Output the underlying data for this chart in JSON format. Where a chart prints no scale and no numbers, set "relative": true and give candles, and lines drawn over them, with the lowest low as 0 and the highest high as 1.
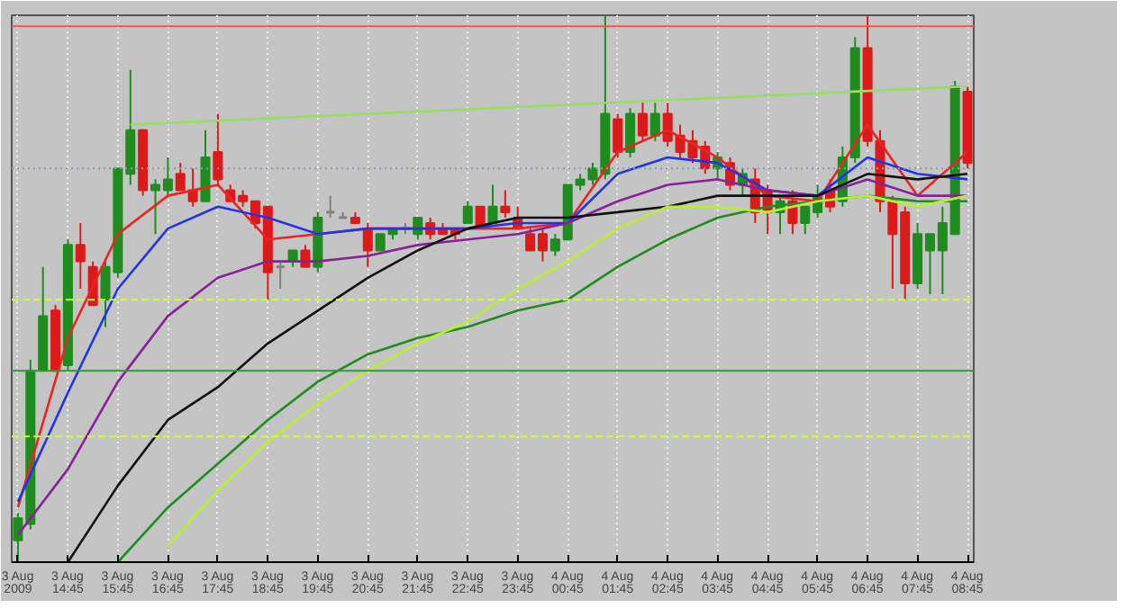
{
  "chart_data": {
    "type": "candlestick",
    "relative": true,
    "grid": "x",
    "categories": [
      "3 Aug 2009",
      null,
      null,
      null,
      "3 Aug 14:45",
      null,
      null,
      null,
      "3 Aug 15:45",
      null,
      null,
      null,
      "3 Aug 16:45",
      null,
      null,
      null,
      "3 Aug 17:45",
      null,
      null,
      null,
      "3 Aug 18:45",
      null,
      null,
      null,
      "3 Aug 19:45",
      null,
      null,
      null,
      "3 Aug 20:45",
      null,
      null,
      null,
      "3 Aug 21:45",
      null,
      null,
      null,
      "3 Aug 22:45",
      null,
      null,
      null,
      "3 Aug 23:45",
      null,
      null,
      null,
      "4 Aug 00:45",
      null,
      null,
      null,
      "4 Aug 01:45",
      null,
      null,
      null,
      "4 Aug 02:45",
      null,
      null,
      null,
      "4 Aug 03:45",
      null,
      null,
      null,
      "4 Aug 04:45",
      null,
      null,
      null,
      "4 Aug 05:45",
      null,
      null,
      null,
      "4 Aug 06:45",
      null,
      null,
      null,
      "4 Aug 07:45",
      null,
      null,
      null,
      "4 Aug 08:45"
    ],
    "colors": [
      "#1e8c1e",
      "#1e8c1e",
      "#1e8c1e",
      "#dd1a1a",
      "#1e8c1e",
      "#dd1a1a",
      "#dd1a1a",
      "#1e8c1e",
      "#1e8c1e",
      "#1e8c1e",
      "#dd1a1a",
      "#1e8c1e",
      "#1e8c1e",
      "#dd1a1a",
      "#dd1a1a",
      "#1e8c1e",
      "#dd1a1a",
      "#dd1a1a",
      "#dd1a1a",
      "#dd1a1a",
      "#dd1a1a",
      "#808080",
      "#1e8c1e",
      "#dd1a1a",
      "#1e8c1e",
      "#808080",
      "#808080",
      "#dd1a1a",
      "#dd1a1a",
      "#1e8c1e",
      "#1e8c1e",
      "#808080",
      "#1e8c1e",
      "#dd1a1a",
      "#dd1a1a",
      "#dd1a1a",
      "#1e8c1e",
      "#dd1a1a",
      "#1e8c1e",
      "#dd1a1a",
      "#dd1a1a",
      "#dd1a1a",
      "#dd1a1a",
      "#1e8c1e",
      "#1e8c1e",
      "#1e8c1e",
      "#1e8c1e",
      "#1e8c1e",
      "#dd1a1a",
      "#1e8c1e",
      "#dd1a1a",
      "#1e8c1e",
      "#dd1a1a",
      "#dd1a1a",
      "#dd1a1a",
      "#dd1a1a",
      "#1e8c1e",
      "#dd1a1a",
      "#1e8c1e",
      "#dd1a1a",
      "#dd1a1a",
      "#1e8c1e",
      "#dd1a1a",
      "#1e8c1e",
      "#1e8c1e",
      "#dd1a1a",
      "#1e8c1e",
      "#1e8c1e",
      "#dd1a1a",
      "#dd1a1a",
      "#dd1a1a",
      "#dd1a1a",
      "#1e8c1e",
      "#1e8c1e",
      "#1e8c1e",
      "#1e8c1e",
      "#dd1a1a"
    ],
    "ohlc": [
      [
        0.04,
        0.09,
        0,
        0.08
      ],
      [
        0.07,
        0.37,
        0.06,
        0.35
      ],
      [
        0.35,
        0.54,
        0.35,
        0.45
      ],
      [
        0.46,
        0.47,
        0.35,
        0.35
      ],
      [
        0.36,
        0.59,
        0.35,
        0.58
      ],
      [
        0.58,
        0.62,
        0.5,
        0.55
      ],
      [
        0.54,
        0.55,
        0.47,
        0.47
      ],
      [
        0.48,
        0.55,
        0.43,
        0.54
      ],
      [
        0.53,
        0.72,
        0.52,
        0.72
      ],
      [
        0.71,
        0.9,
        0.69,
        0.79
      ],
      [
        0.79,
        0.79,
        0.67,
        0.68
      ],
      [
        0.68,
        0.7,
        0.6,
        0.69
      ],
      [
        0.68,
        0.74,
        0.67,
        0.7
      ],
      [
        0.71,
        0.73,
        0.68,
        0.68
      ],
      [
        0.68,
        0.72,
        0.65,
        0.66
      ],
      [
        0.66,
        0.79,
        0.66,
        0.74
      ],
      [
        0.75,
        0.82,
        0.69,
        0.7
      ],
      [
        0.68,
        0.69,
        0.66,
        0.66
      ],
      [
        0.67,
        0.68,
        0.65,
        0.66
      ],
      [
        0.66,
        0.66,
        0.61,
        0.62
      ],
      [
        0.65,
        0.65,
        0.48,
        0.53
      ],
      [
        0.54,
        0.55,
        0.5,
        0.54
      ],
      [
        0.55,
        0.57,
        0.54,
        0.57
      ],
      [
        0.57,
        0.58,
        0.54,
        0.54
      ],
      [
        0.54,
        0.64,
        0.53,
        0.63
      ],
      [
        0.64,
        0.67,
        0.63,
        0.64
      ],
      [
        0.63,
        0.64,
        0.63,
        0.63
      ],
      [
        0.63,
        0.64,
        0.62,
        0.62
      ],
      [
        0.61,
        0.62,
        0.54,
        0.57
      ],
      [
        0.57,
        0.6,
        0.57,
        0.6
      ],
      [
        0.6,
        0.61,
        0.59,
        0.61
      ],
      [
        0.61,
        0.62,
        0.6,
        0.61
      ],
      [
        0.6,
        0.63,
        0.59,
        0.63
      ],
      [
        0.62,
        0.63,
        0.59,
        0.6
      ],
      [
        0.61,
        0.62,
        0.6,
        0.6
      ],
      [
        0.61,
        0.61,
        0.59,
        0.6
      ],
      [
        0.62,
        0.66,
        0.62,
        0.65
      ],
      [
        0.65,
        0.65,
        0.61,
        0.61
      ],
      [
        0.62,
        0.69,
        0.62,
        0.65
      ],
      [
        0.65,
        0.68,
        0.63,
        0.64
      ],
      [
        0.63,
        0.65,
        0.61,
        0.61
      ],
      [
        0.6,
        0.61,
        0.57,
        0.57
      ],
      [
        0.6,
        0.61,
        0.55,
        0.57
      ],
      [
        0.57,
        0.6,
        0.56,
        0.59
      ],
      [
        0.59,
        0.69,
        0.59,
        0.69
      ],
      [
        0.69,
        0.71,
        0.68,
        0.7
      ],
      [
        0.7,
        0.73,
        0.69,
        0.72
      ],
      [
        0.71,
        1.0,
        0.7,
        0.82
      ],
      [
        0.81,
        0.82,
        0.74,
        0.75
      ],
      [
        0.75,
        0.83,
        0.74,
        0.82
      ],
      [
        0.82,
        0.84,
        0.77,
        0.78
      ],
      [
        0.78,
        0.84,
        0.77,
        0.82
      ],
      [
        0.82,
        0.84,
        0.76,
        0.77
      ],
      [
        0.78,
        0.8,
        0.74,
        0.75
      ],
      [
        0.77,
        0.79,
        0.73,
        0.74
      ],
      [
        0.76,
        0.77,
        0.71,
        0.72
      ],
      [
        0.72,
        0.75,
        0.7,
        0.74
      ],
      [
        0.73,
        0.74,
        0.68,
        0.69
      ],
      [
        0.69,
        0.72,
        0.67,
        0.71
      ],
      [
        0.7,
        0.72,
        0.62,
        0.64
      ],
      [
        0.68,
        0.69,
        0.6,
        0.64
      ],
      [
        0.64,
        0.67,
        0.6,
        0.66
      ],
      [
        0.66,
        0.68,
        0.6,
        0.62
      ],
      [
        0.62,
        0.65,
        0.6,
        0.65
      ],
      [
        0.64,
        0.69,
        0.63,
        0.67
      ],
      [
        0.68,
        0.7,
        0.64,
        0.65
      ],
      [
        0.66,
        0.76,
        0.65,
        0.74
      ],
      [
        0.74,
        0.96,
        0.73,
        0.94
      ],
      [
        0.94,
        1.0,
        0.76,
        0.77
      ],
      [
        0.77,
        0.79,
        0.64,
        0.66
      ],
      [
        0.66,
        0.67,
        0.5,
        0.6
      ],
      [
        0.64,
        0.65,
        0.48,
        0.51
      ],
      [
        0.51,
        0.62,
        0.5,
        0.6
      ],
      [
        0.57,
        0.6,
        0.49,
        0.6
      ],
      [
        0.57,
        0.65,
        0.49,
        0.62
      ],
      [
        0.6,
        0.88,
        0.6,
        0.87
      ],
      [
        0.86,
        0.87,
        0.72,
        0.73
      ]
    ],
    "series": [
      {
        "type": "line",
        "color": "#ee2222",
        "values": [
          0.1,
          null,
          null,
          null,
          0.41,
          null,
          null,
          null,
          0.6,
          null,
          null,
          null,
          0.67,
          null,
          null,
          null,
          0.69,
          null,
          null,
          null,
          0.59,
          null,
          null,
          null,
          0.6,
          null,
          null,
          null,
          0.61,
          null,
          null,
          null,
          0.61,
          null,
          null,
          null,
          0.61,
          null,
          null,
          null,
          0.61,
          null,
          null,
          null,
          0.62,
          null,
          null,
          null,
          0.75,
          null,
          null,
          null,
          0.79,
          null,
          null,
          null,
          0.74,
          null,
          null,
          null,
          0.67,
          null,
          null,
          null,
          0.66,
          null,
          null,
          null,
          0.8,
          null,
          null,
          null,
          0.67,
          null,
          null,
          null,
          0.75
        ]
      },
      {
        "type": "line",
        "color": "#2233ee",
        "values": [
          0.11,
          null,
          null,
          null,
          0.31,
          null,
          null,
          null,
          0.5,
          null,
          null,
          null,
          0.61,
          null,
          null,
          null,
          0.65,
          null,
          null,
          null,
          0.63,
          null,
          null,
          null,
          0.6,
          null,
          null,
          null,
          0.61,
          null,
          null,
          null,
          0.61,
          null,
          null,
          null,
          0.61,
          null,
          null,
          null,
          0.62,
          null,
          null,
          null,
          0.62,
          null,
          null,
          null,
          0.71,
          null,
          null,
          null,
          0.74,
          null,
          null,
          null,
          0.73,
          null,
          null,
          null,
          0.68,
          null,
          null,
          null,
          0.67,
          null,
          null,
          null,
          0.74,
          null,
          null,
          null,
          0.71,
          null,
          null,
          null,
          0.7
        ]
      },
      {
        "type": "line",
        "color": "#882299",
        "values": [
          0.05,
          null,
          null,
          null,
          0.17,
          null,
          null,
          null,
          0.33,
          null,
          null,
          null,
          0.45,
          null,
          null,
          null,
          0.52,
          null,
          null,
          null,
          0.55,
          null,
          null,
          null,
          0.55,
          null,
          null,
          null,
          0.56,
          null,
          null,
          null,
          0.58,
          null,
          null,
          null,
          0.59,
          null,
          null,
          null,
          0.6,
          null,
          null,
          null,
          0.62,
          null,
          null,
          null,
          0.66,
          null,
          null,
          null,
          0.69,
          null,
          null,
          null,
          0.7,
          null,
          null,
          null,
          0.68,
          null,
          null,
          null,
          0.67,
          null,
          null,
          null,
          0.7,
          null,
          null,
          null,
          0.67,
          null,
          null,
          null,
          0.67
        ]
      },
      {
        "type": "line",
        "color": "#111111",
        "values": [
          null,
          null,
          null,
          null,
          0,
          null,
          null,
          null,
          0.14,
          null,
          null,
          null,
          0.26,
          null,
          null,
          null,
          0.32,
          null,
          null,
          null,
          0.4,
          null,
          null,
          null,
          0.46,
          null,
          null,
          null,
          0.52,
          null,
          null,
          null,
          0.57,
          null,
          null,
          null,
          0.61,
          null,
          null,
          null,
          0.63,
          null,
          null,
          null,
          0.63,
          null,
          null,
          null,
          0.64,
          null,
          null,
          null,
          0.65,
          null,
          null,
          null,
          0.67,
          null,
          null,
          null,
          0.67,
          null,
          null,
          null,
          0.67,
          null,
          null,
          null,
          0.71,
          null,
          null,
          null,
          0.7,
          null,
          null,
          null,
          0.71
        ]
      },
      {
        "type": "line",
        "color": "#228b22",
        "values": [
          null,
          null,
          null,
          null,
          null,
          null,
          null,
          null,
          0,
          null,
          null,
          null,
          0.1,
          null,
          null,
          null,
          0.18,
          null,
          null,
          null,
          0.26,
          null,
          null,
          null,
          0.33,
          null,
          null,
          null,
          0.38,
          null,
          null,
          null,
          0.41,
          null,
          null,
          null,
          0.43,
          null,
          null,
          null,
          0.46,
          null,
          null,
          null,
          0.48,
          null,
          null,
          null,
          0.54,
          null,
          null,
          null,
          0.59,
          null,
          null,
          null,
          0.63,
          null,
          null,
          null,
          0.65,
          null,
          null,
          null,
          0.66,
          null,
          null,
          null,
          0.67,
          null,
          null,
          null,
          0.66,
          null,
          null,
          null,
          0.66
        ]
      },
      {
        "type": "line",
        "color": "#bbee33",
        "values": [
          null,
          null,
          null,
          null,
          null,
          null,
          null,
          null,
          null,
          null,
          null,
          null,
          0.03,
          null,
          null,
          null,
          0.13,
          null,
          null,
          null,
          0.22,
          null,
          null,
          null,
          0.29,
          null,
          null,
          null,
          0.35,
          null,
          null,
          null,
          0.4,
          null,
          null,
          null,
          0.44,
          null,
          null,
          null,
          0.5,
          null,
          null,
          null,
          0.55,
          null,
          null,
          null,
          0.61,
          null,
          null,
          null,
          0.65,
          null,
          null,
          null,
          0.65,
          null,
          null,
          null,
          0.64,
          null,
          null,
          null,
          0.66,
          null,
          null,
          null,
          0.67,
          null,
          null,
          null,
          0.65,
          null,
          null,
          null,
          0.67
        ]
      },
      {
        "type": "line",
        "color": "#99dd66",
        "values": [
          null,
          null,
          null,
          null,
          null,
          null,
          null,
          null,
          null,
          0.8,
          null,
          null,
          null,
          null,
          null,
          null,
          null,
          null,
          null,
          null,
          null,
          null,
          null,
          null,
          null,
          null,
          null,
          null,
          null,
          null,
          null,
          null,
          null,
          null,
          null,
          null,
          null,
          null,
          null,
          null,
          null,
          null,
          null,
          null,
          null,
          null,
          null,
          null,
          null,
          null,
          null,
          null,
          null,
          null,
          null,
          null,
          null,
          null,
          null,
          null,
          null,
          null,
          null,
          null,
          null,
          null,
          null,
          null,
          null,
          null,
          null,
          null,
          null,
          null,
          null,
          null,
          0.87
        ]
      }
    ],
    "ref_lines": [
      {
        "axis": "y",
        "value": 0.98,
        "color": "#ff5050",
        "line_style": "solid"
      },
      {
        "axis": "y",
        "value": 0.72,
        "color": "#8899bb",
        "line_style": "dotted"
      },
      {
        "axis": "y",
        "value": 0.48,
        "color": "#ccff33",
        "line_style": "dashed"
      },
      {
        "axis": "y",
        "value": 0.35,
        "color": "#339933",
        "line_style": "solid"
      },
      {
        "axis": "y",
        "value": 0.23,
        "color": "#ccff33",
        "line_style": "dashed"
      }
    ]
  }
}
